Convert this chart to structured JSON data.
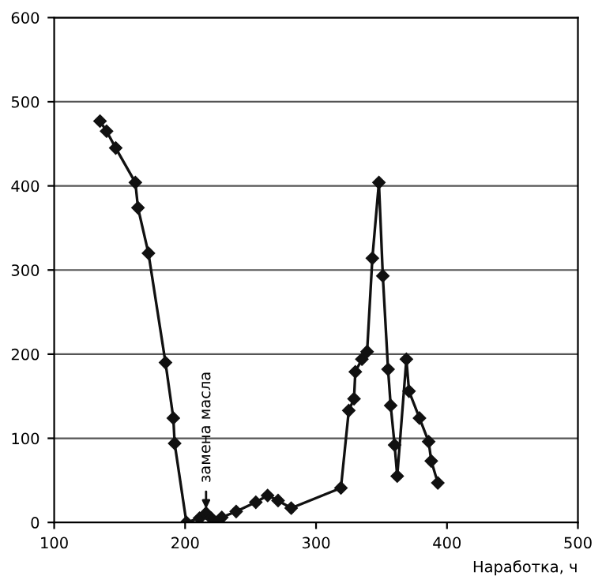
{
  "chart_data": {
    "type": "line",
    "xlabel": "Наработка, ч",
    "x": [
      135,
      140,
      147,
      162,
      164,
      172,
      185,
      191,
      192,
      201,
      211,
      216,
      220,
      225,
      228,
      239,
      254,
      263,
      271,
      281,
      319,
      325,
      329,
      330,
      335,
      339,
      343,
      348,
      351,
      355,
      357,
      360,
      362,
      369,
      371,
      379,
      386,
      388,
      393
    ],
    "series": [
      {
        "color": "#111111",
        "values": [
          477,
          465,
          445,
          404,
          374,
          320,
          190,
          124,
          94,
          0,
          5,
          11,
          5,
          0,
          6,
          13,
          24,
          32,
          26,
          17,
          41,
          133,
          147,
          179,
          194,
          203,
          314,
          404,
          293,
          182,
          139,
          92,
          55,
          194,
          156,
          124,
          96,
          73,
          47
        ]
      }
    ],
    "xlim": [
      100,
      500
    ],
    "ylim": [
      0,
      600
    ],
    "xticks": [
      100,
      200,
      300,
      400,
      500
    ],
    "yticks": [
      0,
      100,
      200,
      300,
      400,
      500,
      600
    ],
    "grid": "y",
    "marker": "diamond",
    "line_style": "solid",
    "annotations": [
      {
        "text": "замена масла",
        "x": 216,
        "y": 11
      }
    ]
  }
}
